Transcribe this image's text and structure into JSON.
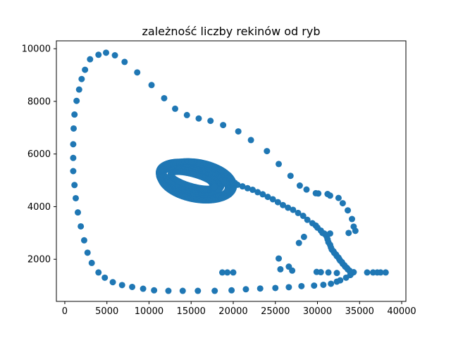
{
  "chart_data": {
    "type": "scatter",
    "title": "zależność liczby rekinów od ryb",
    "xlabel": "",
    "ylabel": "",
    "xlim": [
      -1000,
      40500
    ],
    "ylim": [
      400,
      10300
    ],
    "xticks": [
      0,
      5000,
      10000,
      15000,
      20000,
      25000,
      30000,
      35000,
      40000
    ],
    "xtick_labels": [
      "0",
      "5000",
      "10000",
      "15000",
      "20000",
      "25000",
      "30000",
      "35000",
      "40000"
    ],
    "yticks": [
      2000,
      4000,
      6000,
      8000,
      10000
    ],
    "ytick_labels": [
      "2000",
      "4000",
      "6000",
      "8000",
      "10000"
    ],
    "grid": false,
    "legend": "none",
    "series": [
      {
        "color": "#1f77b4",
        "points": [
          [
            4900,
            9850
          ],
          [
            5950,
            9750
          ],
          [
            4000,
            9770
          ],
          [
            3000,
            9600
          ],
          [
            2400,
            9200
          ],
          [
            2000,
            8850
          ],
          [
            1700,
            8450
          ],
          [
            1400,
            8020
          ],
          [
            1150,
            7500
          ],
          [
            1050,
            6970
          ],
          [
            1000,
            6370
          ],
          [
            1000,
            5850
          ],
          [
            1000,
            5350
          ],
          [
            1150,
            4820
          ],
          [
            1300,
            4320
          ],
          [
            1550,
            3780
          ],
          [
            1900,
            3250
          ],
          [
            2300,
            2720
          ],
          [
            2700,
            2250
          ],
          [
            3200,
            1860
          ],
          [
            4000,
            1500
          ],
          [
            4750,
            1300
          ],
          [
            5700,
            1130
          ],
          [
            6800,
            1020
          ],
          [
            8000,
            950
          ],
          [
            9300,
            880
          ],
          [
            10600,
            820
          ],
          [
            12300,
            800
          ],
          [
            14000,
            800
          ],
          [
            15800,
            800
          ],
          [
            17800,
            800
          ],
          [
            19800,
            820
          ],
          [
            21500,
            860
          ],
          [
            23200,
            890
          ],
          [
            25000,
            910
          ],
          [
            26600,
            940
          ],
          [
            28100,
            980
          ],
          [
            29600,
            1000
          ],
          [
            30700,
            1030
          ],
          [
            31600,
            1070
          ],
          [
            32300,
            1150
          ],
          [
            32700,
            1200
          ],
          [
            33400,
            1300
          ],
          [
            33900,
            1400
          ],
          [
            34100,
            1480
          ],
          [
            34300,
            1510
          ],
          [
            7100,
            9500
          ],
          [
            8600,
            9100
          ],
          [
            10300,
            8620
          ],
          [
            11800,
            8120
          ],
          [
            13100,
            7720
          ],
          [
            14500,
            7480
          ],
          [
            15900,
            7350
          ],
          [
            17300,
            7260
          ],
          [
            18800,
            7100
          ],
          [
            20600,
            6860
          ],
          [
            22100,
            6530
          ],
          [
            24000,
            6110
          ],
          [
            25400,
            5620
          ],
          [
            26800,
            5170
          ],
          [
            27900,
            4800
          ],
          [
            28700,
            4650
          ],
          [
            29800,
            4510
          ],
          [
            30100,
            4500
          ],
          [
            31200,
            4480
          ],
          [
            31500,
            4420
          ],
          [
            32500,
            4330
          ],
          [
            33000,
            4130
          ],
          [
            33600,
            3860
          ],
          [
            34100,
            3530
          ],
          [
            34300,
            3240
          ],
          [
            34500,
            3080
          ],
          [
            33700,
            3000
          ],
          [
            28400,
            2850
          ],
          [
            27800,
            2620
          ],
          [
            25400,
            2030
          ],
          [
            25600,
            1620
          ],
          [
            26600,
            1720
          ],
          [
            27000,
            1570
          ],
          [
            29900,
            1520
          ],
          [
            30400,
            1510
          ],
          [
            31300,
            1500
          ],
          [
            32300,
            1480
          ],
          [
            18700,
            1500
          ],
          [
            19300,
            1500
          ],
          [
            20000,
            1500
          ],
          [
            35900,
            1500
          ],
          [
            36600,
            1500
          ],
          [
            37100,
            1500
          ],
          [
            37500,
            1500
          ],
          [
            38100,
            1500
          ],
          [
            20500,
            4830
          ],
          [
            21100,
            4770
          ],
          [
            21700,
            4700
          ],
          [
            22300,
            4640
          ],
          [
            22900,
            4550
          ],
          [
            23500,
            4470
          ],
          [
            24100,
            4370
          ],
          [
            24700,
            4280
          ],
          [
            25300,
            4170
          ],
          [
            25900,
            4060
          ],
          [
            26500,
            3960
          ],
          [
            27100,
            3880
          ],
          [
            27700,
            3760
          ],
          [
            28300,
            3650
          ],
          [
            28800,
            3500
          ],
          [
            29400,
            3370
          ],
          [
            29800,
            3280
          ],
          [
            30000,
            3200
          ],
          [
            30400,
            3090
          ],
          [
            30600,
            3000
          ],
          [
            30900,
            2950
          ],
          [
            31100,
            2860
          ],
          [
            31200,
            2760
          ],
          [
            31300,
            2650
          ],
          [
            31500,
            2550
          ],
          [
            31600,
            2450
          ],
          [
            31700,
            2370
          ],
          [
            31900,
            2300
          ],
          [
            32000,
            2240
          ],
          [
            32200,
            2180
          ],
          [
            32300,
            2120
          ],
          [
            32500,
            2060
          ],
          [
            32600,
            2000
          ],
          [
            32700,
            1950
          ],
          [
            32900,
            1890
          ],
          [
            33000,
            1830
          ],
          [
            33200,
            1770
          ],
          [
            33300,
            1720
          ],
          [
            33500,
            1670
          ],
          [
            33600,
            1620
          ],
          [
            33800,
            1570
          ],
          [
            33900,
            1520
          ],
          [
            18900,
            5170
          ],
          [
            19400,
            5100
          ],
          [
            19800,
            5030
          ],
          [
            20200,
            4900
          ],
          [
            30800,
            2980
          ],
          [
            31500,
            2980
          ]
        ],
        "loops": [
          {
            "cx": 15300,
            "cy": 5000,
            "rx": 4300,
            "ry": 620,
            "rot": -22,
            "count": 150
          },
          {
            "cx": 14900,
            "cy": 5080,
            "rx": 3900,
            "ry": 560,
            "rot": -22,
            "count": 140
          },
          {
            "cx": 15500,
            "cy": 4950,
            "rx": 4100,
            "ry": 460,
            "rot": -20,
            "count": 130
          },
          {
            "cx": 15000,
            "cy": 5020,
            "rx": 3600,
            "ry": 380,
            "rot": -24,
            "count": 120
          },
          {
            "cx": 14600,
            "cy": 5050,
            "rx": 3200,
            "ry": 300,
            "rot": -24,
            "count": 110
          },
          {
            "cx": 15200,
            "cy": 5000,
            "rx": 2800,
            "ry": 220,
            "rot": -22,
            "count": 100
          },
          {
            "cx": 15700,
            "cy": 4980,
            "rx": 4500,
            "ry": 700,
            "rot": -18,
            "count": 150
          }
        ]
      }
    ]
  }
}
